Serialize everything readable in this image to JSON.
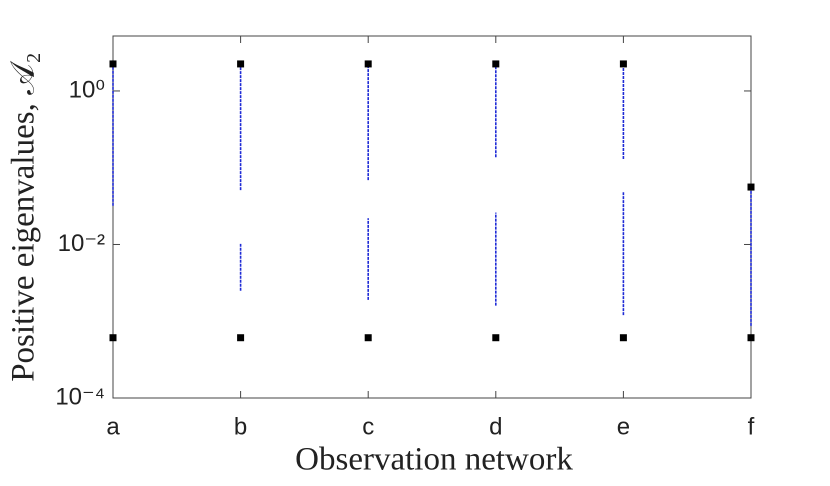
{
  "chart_data": {
    "type": "range-marker",
    "xlabel": "Observation network",
    "ylabel": "Positive eigenvalues, 𝒜₂",
    "categories": [
      "a",
      "b",
      "c",
      "d",
      "e",
      "f"
    ],
    "log_y": true,
    "ylim": [
      0.0001,
      5.2
    ],
    "yticks": [
      {
        "value": 1,
        "label": "10⁰"
      },
      {
        "value": 0.01,
        "label": "10⁻²"
      },
      {
        "value": 0.0001,
        "label": "10⁻⁴"
      }
    ],
    "series": [
      {
        "color": "#000000",
        "values": [
          2.25,
          2.25,
          2.25,
          2.25,
          2.25,
          0.056
        ]
      },
      {
        "color": "#000000",
        "values": [
          0.00061,
          0.00061,
          0.00061,
          0.00061,
          0.00061,
          0.00061
        ]
      }
    ],
    "range_color": "#1f2bd6",
    "ranges": [
      [
        [
          0.032,
          2.25
        ]
      ],
      [
        [
          0.051,
          2.25
        ],
        [
          0.0025,
          0.0102
        ]
      ],
      [
        [
          0.069,
          2.25
        ],
        [
          0.0019,
          0.022
        ]
      ],
      [
        [
          0.137,
          2.25
        ],
        [
          0.0016,
          0.026
        ]
      ],
      [
        [
          0.13,
          2.25
        ],
        [
          0.0012,
          0.048
        ]
      ],
      [
        [
          0.00087,
          0.056
        ]
      ]
    ]
  }
}
